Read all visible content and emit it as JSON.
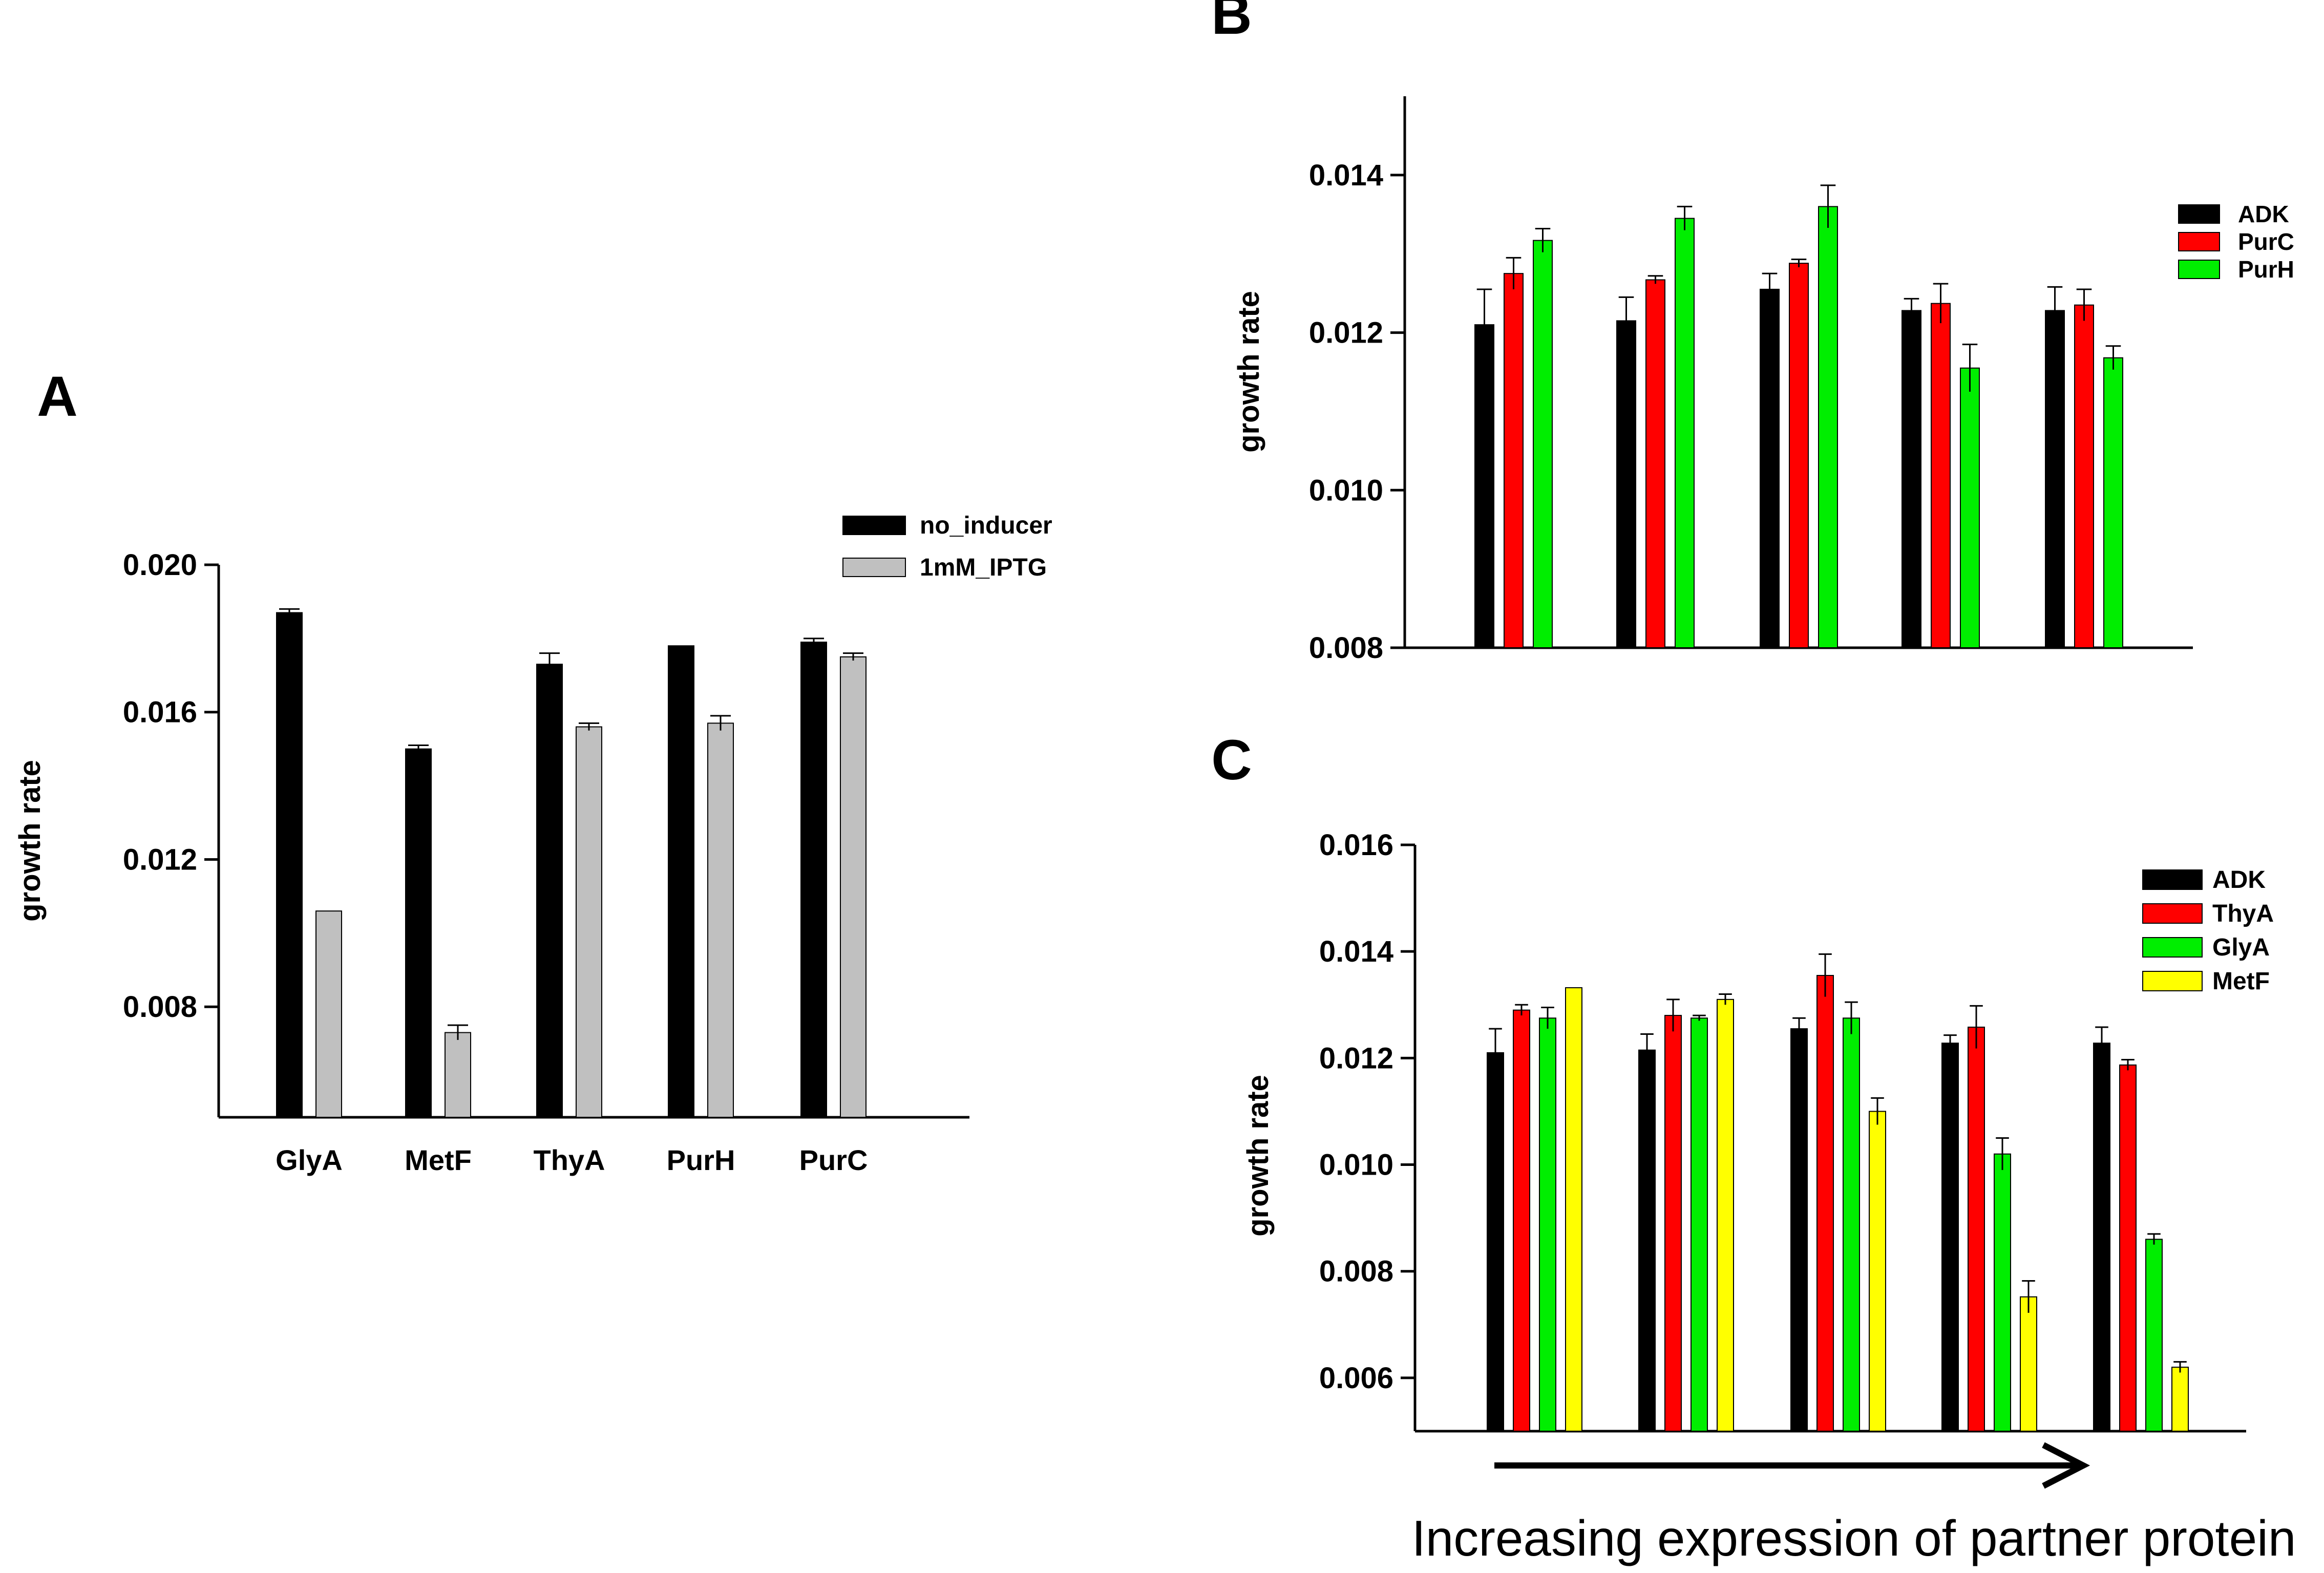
{
  "chart_data": [
    {
      "type": "bar",
      "panel": "A",
      "categories": [
        "GlyA",
        "MetF",
        "ThyA",
        "PurH",
        "PurC"
      ],
      "series": [
        {
          "name": "no_inducer",
          "color": "#000000",
          "values": [
            0.0187,
            0.015,
            0.0173,
            0.0178,
            0.0179
          ],
          "errors": [
            0.0001,
            0.0001,
            0.0003,
            0.0,
            0.0001
          ]
        },
        {
          "name": "1mM_IPTG",
          "color": "#c0c0c0",
          "values": [
            0.0106,
            0.0073,
            0.0156,
            0.0157,
            0.0175
          ],
          "errors": [
            0.0,
            0.0002,
            0.0001,
            0.0002,
            0.0001
          ]
        }
      ],
      "ylim": [
        0.005,
        0.02
      ],
      "yticks": [
        "0.020",
        "0.016",
        "0.012",
        "0.008"
      ],
      "ylabel": "growth rate",
      "xlabel": "",
      "legend": "top-right"
    },
    {
      "type": "bar",
      "panel": "B",
      "categories": [
        "",
        "",
        "",
        "",
        ""
      ],
      "series": [
        {
          "name": "ADK",
          "color": "#000000",
          "values": [
            0.0121,
            0.01215,
            0.01255,
            0.01228,
            0.01228
          ],
          "errors": [
            0.00045,
            0.0003,
            0.0002,
            0.00015,
            0.0003
          ]
        },
        {
          "name": "PurC",
          "color": "#ff0000",
          "values": [
            0.01275,
            0.01267,
            0.01288,
            0.01237,
            0.01235
          ],
          "errors": [
            0.0002,
            5e-05,
            5e-05,
            0.00025,
            0.0002
          ]
        },
        {
          "name": "PurH",
          "color": "#00ee00",
          "values": [
            0.01317,
            0.01345,
            0.0136,
            0.01155,
            0.01168
          ],
          "errors": [
            0.00015,
            0.00015,
            0.00027,
            0.0003,
            0.00015
          ]
        }
      ],
      "ylim": [
        0.008,
        0.015
      ],
      "yticks": [
        "0.014",
        "0.012",
        "0.010",
        "0.008"
      ],
      "ylabel": "growth rate",
      "xlabel": "",
      "legend": "top-right"
    },
    {
      "type": "bar",
      "panel": "C",
      "categories": [
        "",
        "",
        "",
        "",
        ""
      ],
      "series": [
        {
          "name": "ADK",
          "color": "#000000",
          "values": [
            0.0121,
            0.01215,
            0.01255,
            0.01228,
            0.01228
          ],
          "errors": [
            0.00045,
            0.0003,
            0.0002,
            0.00015,
            0.0003
          ]
        },
        {
          "name": "ThyA",
          "color": "#ff0000",
          "values": [
            0.0129,
            0.0128,
            0.01355,
            0.01258,
            0.01187
          ],
          "errors": [
            0.0001,
            0.0003,
            0.0004,
            0.0004,
            0.0001
          ]
        },
        {
          "name": "GlyA",
          "color": "#00ee00",
          "values": [
            0.01275,
            0.01275,
            0.01275,
            0.0102,
            0.0086
          ],
          "errors": [
            0.0002,
            5e-05,
            0.0003,
            0.0003,
            0.0001
          ]
        },
        {
          "name": "MetF",
          "color": "#ffff00",
          "values": [
            0.01332,
            0.0131,
            0.011,
            0.00752,
            0.0062
          ],
          "errors": [
            0.0,
            0.0001,
            0.00025,
            0.0003,
            0.0001
          ]
        }
      ],
      "ylim": [
        0.005,
        0.016
      ],
      "yticks": [
        "0.016",
        "0.014",
        "0.012",
        "0.010",
        "0.008",
        "0.006"
      ],
      "ylabel": "growth rate",
      "xlabel": "Increasing expression of partner protein",
      "annotation": "arrow-right",
      "legend": "top-right"
    }
  ]
}
